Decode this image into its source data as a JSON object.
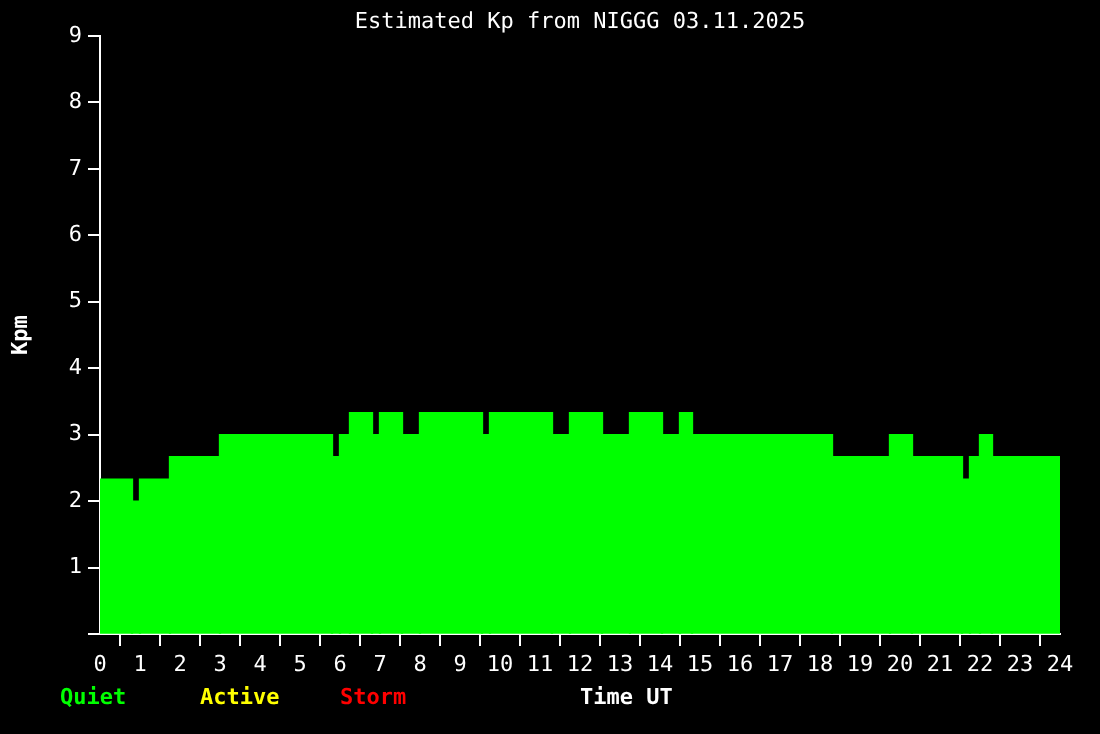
{
  "chart_data": {
    "type": "histogram",
    "title": "Estimated Kp from NIGGG 03.11.2025",
    "xlabel": "Time UT",
    "ylabel": "Kpm",
    "bins": [
      0,
      0.8,
      1.0,
      1.75,
      3.0,
      5.8,
      6.0,
      6.25,
      6.8,
      7.0,
      7.55,
      8.0,
      9.55,
      9.75,
      11.3,
      11.75,
      12.55,
      13.25,
      14.05,
      14.5,
      14.8,
      18.3,
      19.75,
      20.3,
      21.55,
      21.75,
      22.0,
      22.3,
      24
    ],
    "values": [
      2.33,
      2.0,
      2.33,
      2.67,
      3.0,
      2.67,
      3.0,
      3.33,
      3.0,
      3.33,
      3.0,
      3.33,
      3.0,
      3.33,
      3.0,
      3.33,
      3.0,
      3.33,
      3.0,
      3.33,
      3.0,
      2.67,
      3.0,
      2.67,
      2.33,
      2.67,
      3.0,
      2.67
    ],
    "color": "#00ff00",
    "xlim": [
      0,
      24
    ],
    "xticks": [
      0,
      1,
      2,
      3,
      4,
      5,
      6,
      7,
      8,
      9,
      10,
      11,
      12,
      13,
      14,
      15,
      16,
      17,
      18,
      19,
      20,
      21,
      22,
      23,
      24
    ],
    "ylim": [
      0,
      9
    ],
    "yticks": [
      {
        "value": 0,
        "label": null
      },
      1,
      2,
      3,
      4,
      5,
      6,
      7,
      8,
      9
    ],
    "grid": false,
    "annotations": [
      "Quiet",
      "Active",
      "Storm"
    ]
  }
}
